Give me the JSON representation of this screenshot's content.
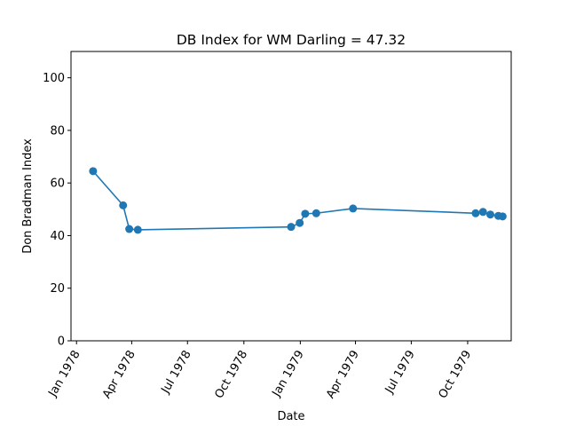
{
  "chart_data": {
    "type": "line",
    "title": "DB Index for WM Darling = 47.32",
    "xlabel": "Date",
    "ylabel": "Don Bradman Index",
    "ylim": [
      0,
      110
    ],
    "xlim": [
      "1977-12-23",
      "1979-12-11"
    ],
    "y_ticks": [
      0,
      20,
      40,
      60,
      80,
      100
    ],
    "x_ticks": [
      {
        "date": "1978-01-01",
        "label": "Jan 1978"
      },
      {
        "date": "1978-04-01",
        "label": "Apr 1978"
      },
      {
        "date": "1978-07-01",
        "label": "Jul 1978"
      },
      {
        "date": "1978-10-01",
        "label": "Oct 1978"
      },
      {
        "date": "1979-01-01",
        "label": "Jan 1979"
      },
      {
        "date": "1979-04-01",
        "label": "Apr 1979"
      },
      {
        "date": "1979-07-01",
        "label": "Jul 1979"
      },
      {
        "date": "1979-10-01",
        "label": "Oct 1979"
      }
    ],
    "grid": false,
    "series": [
      {
        "color": "#1f77b4",
        "marker": "circle",
        "points": [
          {
            "x": "1978-01-28",
            "y": 64.5
          },
          {
            "x": "1978-03-18",
            "y": 51.5
          },
          {
            "x": "1978-03-28",
            "y": 42.5
          },
          {
            "x": "1978-04-11",
            "y": 42.2
          },
          {
            "x": "1978-12-17",
            "y": 43.3
          },
          {
            "x": "1978-12-31",
            "y": 44.8
          },
          {
            "x": "1979-01-09",
            "y": 48.3
          },
          {
            "x": "1979-01-27",
            "y": 48.5
          },
          {
            "x": "1979-03-28",
            "y": 50.3
          },
          {
            "x": "1979-10-14",
            "y": 48.5
          },
          {
            "x": "1979-10-26",
            "y": 49.0
          },
          {
            "x": "1979-11-07",
            "y": 48.0
          },
          {
            "x": "1979-11-20",
            "y": 47.5
          },
          {
            "x": "1979-11-27",
            "y": 47.3
          }
        ]
      }
    ]
  }
}
